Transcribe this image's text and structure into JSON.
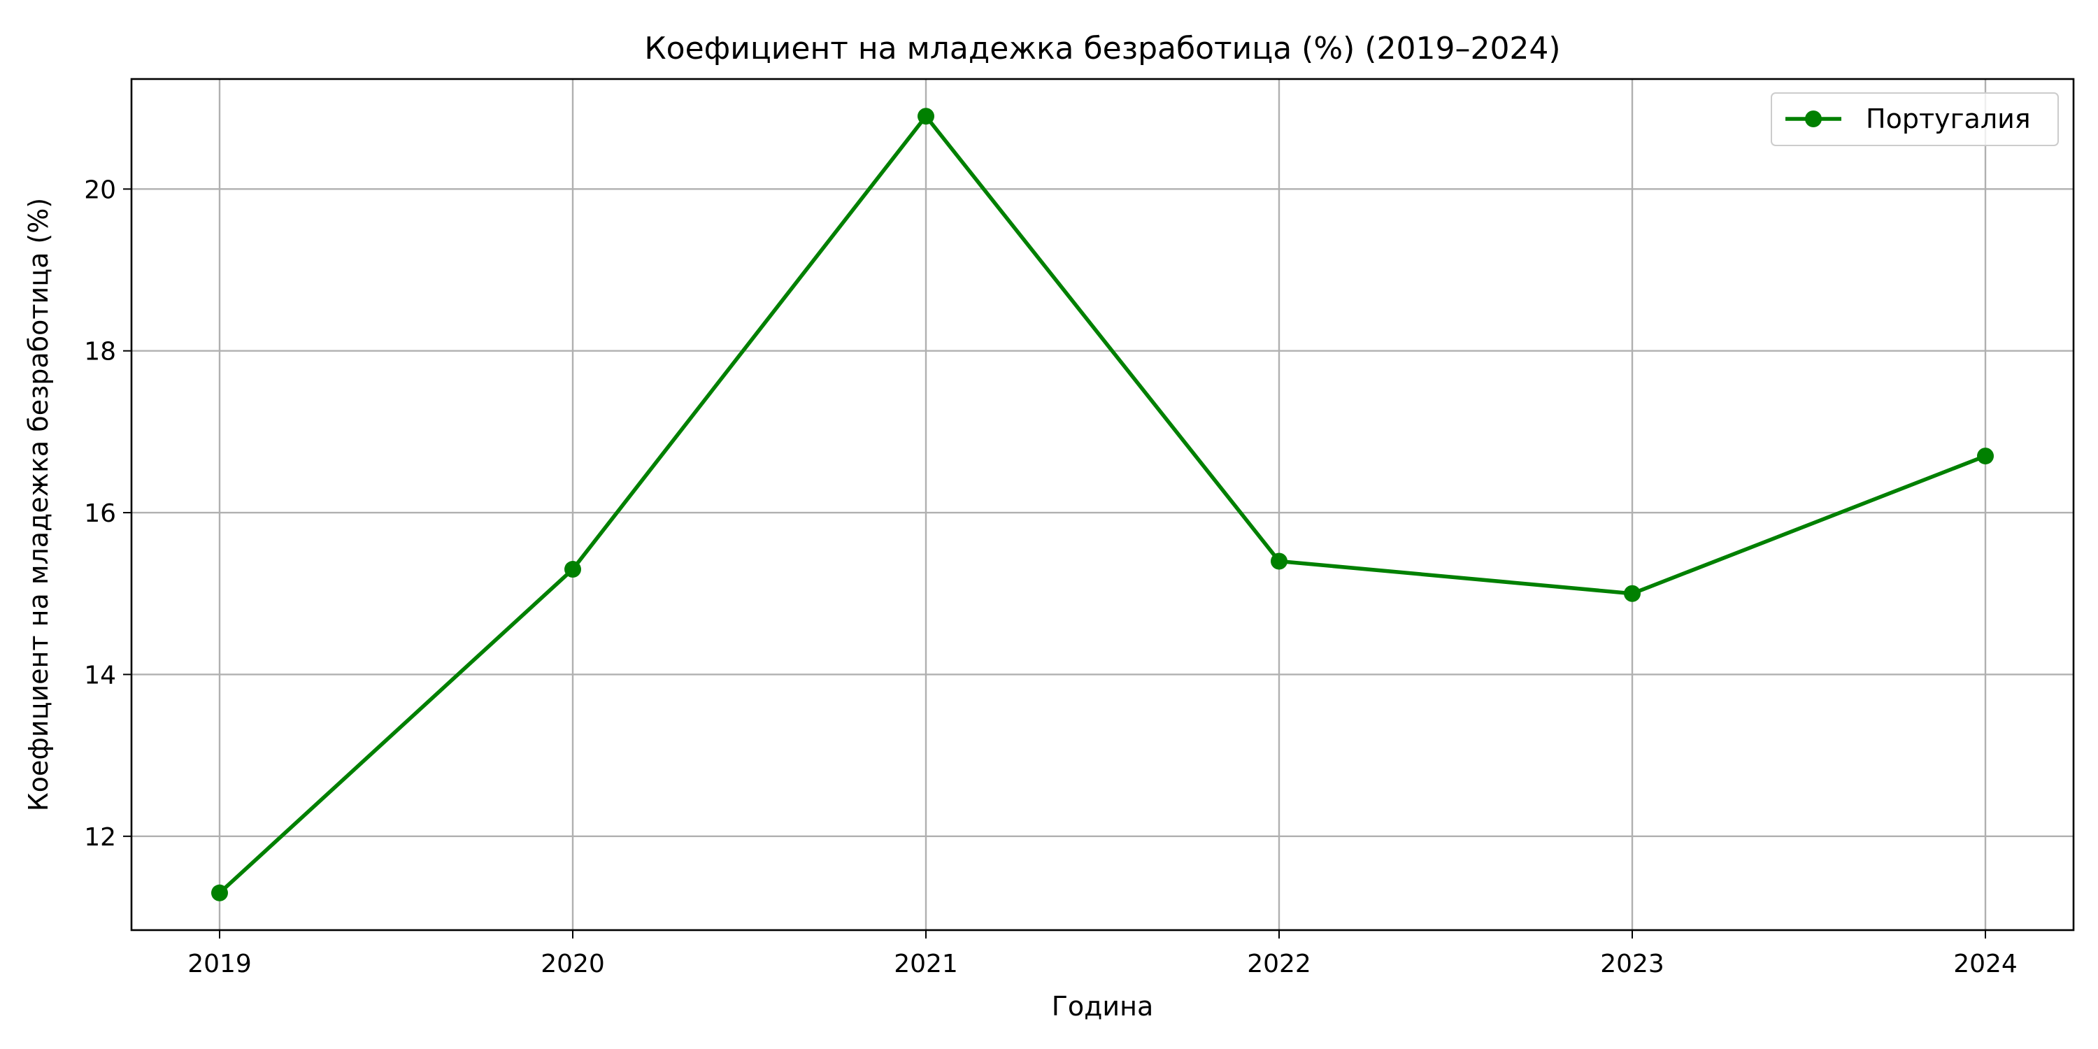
{
  "chart_data": {
    "type": "line",
    "title": "Коефициент на младежка безработица (%) (2019–2024)",
    "xlabel": "Година",
    "ylabel": "Коефициент на младежка безработица (%)",
    "x": [
      "2019",
      "2020",
      "2021",
      "2022",
      "2023",
      "2024"
    ],
    "series": [
      {
        "name": "Португалия",
        "values": [
          11.3,
          15.3,
          20.9,
          15.4,
          15.0,
          16.7
        ],
        "color": "#008000",
        "marker": "circle"
      }
    ],
    "yticks": [
      12,
      14,
      16,
      18,
      20
    ],
    "ylim": [
      10.84,
      21.36
    ],
    "grid": true,
    "legend_position": "top-right"
  }
}
